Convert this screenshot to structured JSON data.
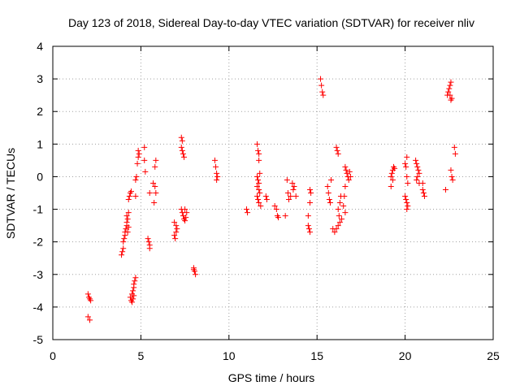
{
  "chart_data": {
    "type": "scatter",
    "title": "Day 123 of 2018, Sidereal Day-to-day VTEC variation (SDTVAR) for receiver nliv",
    "xlabel": "GPS time / hours",
    "ylabel": "SDTVAR / TECUs",
    "xlim": [
      0,
      25
    ],
    "ylim": [
      -5,
      4
    ],
    "xticks": [
      "0",
      "5",
      "10",
      "15",
      "20",
      "25"
    ],
    "yticks": [
      "-5",
      "-4",
      "-3",
      "-2",
      "-1",
      "0",
      "1",
      "2",
      "3",
      "4"
    ],
    "grid": true,
    "marker": "+",
    "color": "#ff0000",
    "series": [
      {
        "name": "SDTVAR",
        "points": [
          [
            2.0,
            -3.6
          ],
          [
            2.05,
            -3.7
          ],
          [
            2.1,
            -3.75
          ],
          [
            2.15,
            -3.8
          ],
          [
            2.0,
            -4.3
          ],
          [
            2.1,
            -4.4
          ],
          [
            3.9,
            -2.4
          ],
          [
            3.95,
            -2.3
          ],
          [
            4.0,
            -2.2
          ],
          [
            4.0,
            -2.0
          ],
          [
            4.05,
            -1.9
          ],
          [
            4.1,
            -1.8
          ],
          [
            4.1,
            -1.7
          ],
          [
            4.15,
            -1.6
          ],
          [
            4.2,
            -1.5
          ],
          [
            4.2,
            -1.4
          ],
          [
            4.25,
            -1.3
          ],
          [
            4.2,
            -1.2
          ],
          [
            4.3,
            -1.1
          ],
          [
            4.25,
            -1.7
          ],
          [
            4.3,
            -1.55
          ],
          [
            4.3,
            -0.7
          ],
          [
            4.35,
            -0.6
          ],
          [
            4.4,
            -0.5
          ],
          [
            4.45,
            -0.45
          ],
          [
            4.4,
            -3.7
          ],
          [
            4.45,
            -3.8
          ],
          [
            4.5,
            -3.85
          ],
          [
            4.55,
            -3.75
          ],
          [
            4.5,
            -3.6
          ],
          [
            4.55,
            -3.5
          ],
          [
            4.6,
            -3.4
          ],
          [
            4.6,
            -3.3
          ],
          [
            4.65,
            -3.2
          ],
          [
            4.7,
            -3.1
          ],
          [
            4.6,
            -3.65
          ],
          [
            4.7,
            -0.6
          ],
          [
            4.7,
            -0.1
          ],
          [
            4.75,
            0.0
          ],
          [
            4.8,
            0.4
          ],
          [
            4.85,
            0.6
          ],
          [
            4.9,
            0.7
          ],
          [
            4.85,
            0.8
          ],
          [
            5.2,
            0.9
          ],
          [
            5.2,
            0.5
          ],
          [
            5.25,
            0.15
          ],
          [
            5.4,
            -1.9
          ],
          [
            5.45,
            -2.0
          ],
          [
            5.5,
            -2.1
          ],
          [
            5.5,
            -2.2
          ],
          [
            5.5,
            -0.5
          ],
          [
            5.7,
            -0.2
          ],
          [
            5.8,
            -0.3
          ],
          [
            5.85,
            -0.5
          ],
          [
            5.75,
            -0.8
          ],
          [
            5.8,
            0.3
          ],
          [
            5.85,
            0.5
          ],
          [
            6.9,
            -1.8
          ],
          [
            6.95,
            -1.9
          ],
          [
            7.0,
            -1.7
          ],
          [
            7.05,
            -1.6
          ],
          [
            6.9,
            -1.4
          ],
          [
            7.0,
            -1.5
          ],
          [
            7.3,
            1.2
          ],
          [
            7.35,
            1.1
          ],
          [
            7.3,
            0.9
          ],
          [
            7.35,
            0.8
          ],
          [
            7.4,
            0.7
          ],
          [
            7.45,
            0.6
          ],
          [
            7.3,
            -1.0
          ],
          [
            7.35,
            -1.1
          ],
          [
            7.4,
            -1.2
          ],
          [
            7.45,
            -1.3
          ],
          [
            7.5,
            -1.35
          ],
          [
            7.55,
            -1.25
          ],
          [
            7.6,
            -1.1
          ],
          [
            7.5,
            -1.0
          ],
          [
            8.0,
            -2.8
          ],
          [
            8.05,
            -2.9
          ],
          [
            8.1,
            -3.0
          ],
          [
            8.0,
            -2.85
          ],
          [
            9.2,
            0.5
          ],
          [
            9.25,
            0.3
          ],
          [
            9.3,
            0.1
          ],
          [
            9.35,
            0.0
          ],
          [
            9.3,
            -0.1
          ],
          [
            11.0,
            -1.0
          ],
          [
            11.05,
            -1.1
          ],
          [
            11.6,
            1.0
          ],
          [
            11.65,
            0.8
          ],
          [
            11.7,
            0.7
          ],
          [
            11.7,
            0.5
          ],
          [
            11.6,
            0.0
          ],
          [
            11.65,
            -0.1
          ],
          [
            11.7,
            -0.2
          ],
          [
            11.6,
            -0.3
          ],
          [
            11.7,
            -0.4
          ],
          [
            11.75,
            -0.5
          ],
          [
            11.6,
            -0.6
          ],
          [
            11.65,
            -0.7
          ],
          [
            11.7,
            -0.8
          ],
          [
            11.8,
            -0.9
          ],
          [
            11.75,
            0.1
          ],
          [
            12.1,
            -0.6
          ],
          [
            12.15,
            -0.7
          ],
          [
            12.6,
            -0.9
          ],
          [
            12.7,
            -1.0
          ],
          [
            12.75,
            -1.2
          ],
          [
            12.8,
            -1.25
          ],
          [
            13.2,
            -1.2
          ],
          [
            13.3,
            -0.1
          ],
          [
            13.35,
            -0.5
          ],
          [
            13.4,
            -0.7
          ],
          [
            13.5,
            -0.6
          ],
          [
            13.6,
            -0.2
          ],
          [
            13.65,
            -0.4
          ],
          [
            13.7,
            -0.3
          ],
          [
            13.8,
            -0.6
          ],
          [
            14.5,
            -1.5
          ],
          [
            14.55,
            -1.6
          ],
          [
            14.6,
            -1.7
          ],
          [
            14.5,
            -1.2
          ],
          [
            14.6,
            -0.8
          ],
          [
            14.65,
            -0.5
          ],
          [
            14.6,
            -0.4
          ],
          [
            15.2,
            3.0
          ],
          [
            15.25,
            2.8
          ],
          [
            15.3,
            2.6
          ],
          [
            15.35,
            2.5
          ],
          [
            15.6,
            -0.3
          ],
          [
            15.65,
            -0.5
          ],
          [
            15.7,
            -0.7
          ],
          [
            15.8,
            -0.1
          ],
          [
            15.75,
            -0.8
          ],
          [
            15.9,
            -1.6
          ],
          [
            16.0,
            -1.7
          ],
          [
            16.1,
            -1.6
          ],
          [
            16.2,
            -1.5
          ],
          [
            16.1,
            0.9
          ],
          [
            16.15,
            0.8
          ],
          [
            16.2,
            0.7
          ],
          [
            16.2,
            -1.0
          ],
          [
            16.25,
            -1.2
          ],
          [
            16.3,
            -0.8
          ],
          [
            16.35,
            -0.6
          ],
          [
            16.3,
            -1.4
          ],
          [
            16.4,
            -1.3
          ],
          [
            16.6,
            0.3
          ],
          [
            16.65,
            0.2
          ],
          [
            16.7,
            0.1
          ],
          [
            16.75,
            0.0
          ],
          [
            16.8,
            -0.1
          ],
          [
            16.6,
            -0.3
          ],
          [
            16.55,
            -0.6
          ],
          [
            16.5,
            -0.9
          ],
          [
            16.6,
            -1.1
          ],
          [
            16.85,
            0.15
          ],
          [
            16.9,
            0.0
          ],
          [
            19.2,
            0.0
          ],
          [
            19.25,
            0.1
          ],
          [
            19.3,
            0.2
          ],
          [
            19.35,
            0.3
          ],
          [
            19.4,
            0.25
          ],
          [
            19.3,
            -0.1
          ],
          [
            19.2,
            -0.3
          ],
          [
            20.0,
            0.4
          ],
          [
            20.05,
            0.3
          ],
          [
            20.1,
            0.6
          ],
          [
            20.0,
            -0.6
          ],
          [
            20.05,
            -0.7
          ],
          [
            20.1,
            -0.8
          ],
          [
            20.15,
            -0.9
          ],
          [
            20.1,
            -1.0
          ],
          [
            20.1,
            0.0
          ],
          [
            20.15,
            -0.2
          ],
          [
            20.6,
            0.5
          ],
          [
            20.65,
            0.4
          ],
          [
            20.7,
            0.3
          ],
          [
            20.75,
            0.2
          ],
          [
            20.8,
            0.1
          ],
          [
            20.7,
            0.0
          ],
          [
            20.65,
            -0.1
          ],
          [
            20.8,
            -0.2
          ],
          [
            21.0,
            -0.4
          ],
          [
            21.05,
            -0.5
          ],
          [
            21.1,
            -0.6
          ],
          [
            21.0,
            -0.2
          ],
          [
            22.3,
            -0.4
          ],
          [
            22.4,
            2.5
          ],
          [
            22.45,
            2.6
          ],
          [
            22.5,
            2.7
          ],
          [
            22.55,
            2.8
          ],
          [
            22.6,
            2.9
          ],
          [
            22.65,
            2.4
          ],
          [
            22.6,
            2.35
          ],
          [
            22.55,
            2.5
          ],
          [
            22.6,
            0.2
          ],
          [
            22.65,
            0.0
          ],
          [
            22.7,
            -0.1
          ],
          [
            22.8,
            0.9
          ],
          [
            22.85,
            0.7
          ]
        ]
      }
    ]
  }
}
